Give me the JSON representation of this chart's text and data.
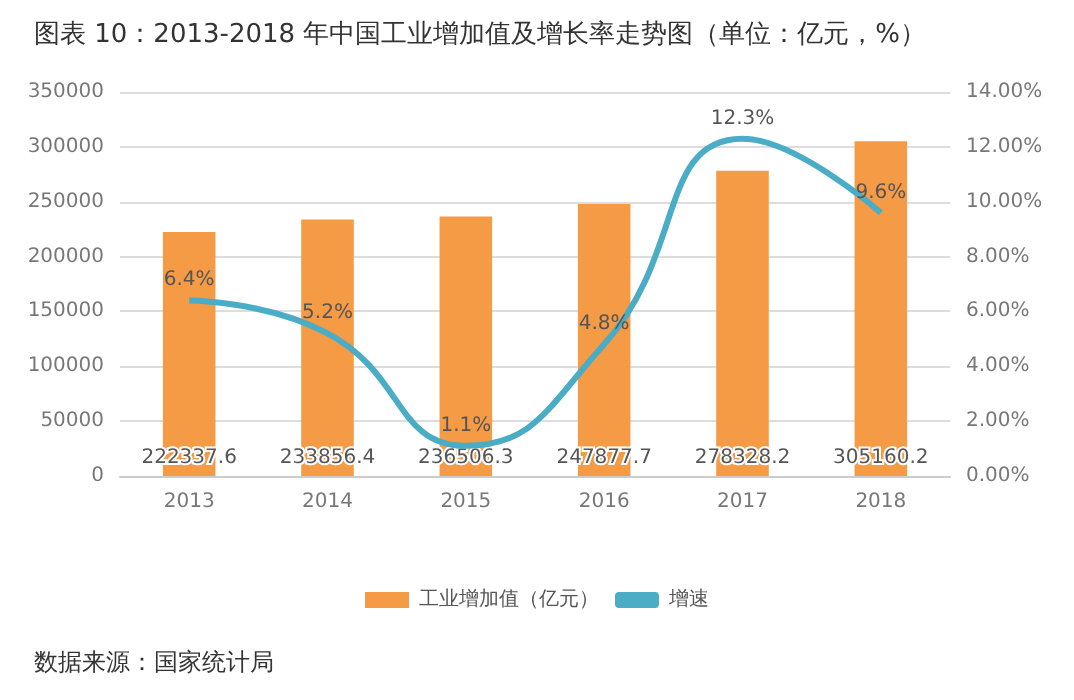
{
  "chart_data": {
    "type": "bar",
    "title": "图表 10：2013-2018 年中国工业增加值及增长率走势图（单位：亿元，%）",
    "categories": [
      "2013",
      "2014",
      "2015",
      "2016",
      "2017",
      "2018"
    ],
    "series": [
      {
        "name": "工业增加值（亿元）",
        "color": "#f59a45",
        "values": [
          222337.6,
          233856.4,
          236506.3,
          247877.7,
          278328.2,
          305160.2
        ]
      },
      {
        "name": "增速",
        "type": "line",
        "axis": "y2",
        "color": "#4bacc6",
        "values": [
          6.4,
          5.2,
          1.1,
          4.8,
          12.3,
          9.6
        ],
        "value_labels": [
          "6.4%",
          "5.2%",
          "1.1%",
          "4.8%",
          "12.3%",
          "9.6%"
        ]
      }
    ],
    "data_labels": true,
    "ylim": [
      0,
      350000
    ],
    "yticks": [
      0,
      50000,
      100000,
      150000,
      200000,
      250000,
      300000,
      350000
    ],
    "y2lim": [
      0,
      14
    ],
    "y2ticks": [
      {
        "value": 0,
        "label": "0.00%"
      },
      {
        "value": 2,
        "label": "2.00%"
      },
      {
        "value": 4,
        "label": "4.00%"
      },
      {
        "value": 6,
        "label": "6.00%"
      },
      {
        "value": 8,
        "label": "8.00%"
      },
      {
        "value": 10,
        "label": "10.00%"
      },
      {
        "value": 12,
        "label": "12.00%"
      },
      {
        "value": 14,
        "label": "14.00%"
      }
    ],
    "grid": "y",
    "legend": "bottom",
    "marker": "none",
    "line_style": "solid",
    "annotations": [
      "数据来源：国家统计局"
    ]
  }
}
